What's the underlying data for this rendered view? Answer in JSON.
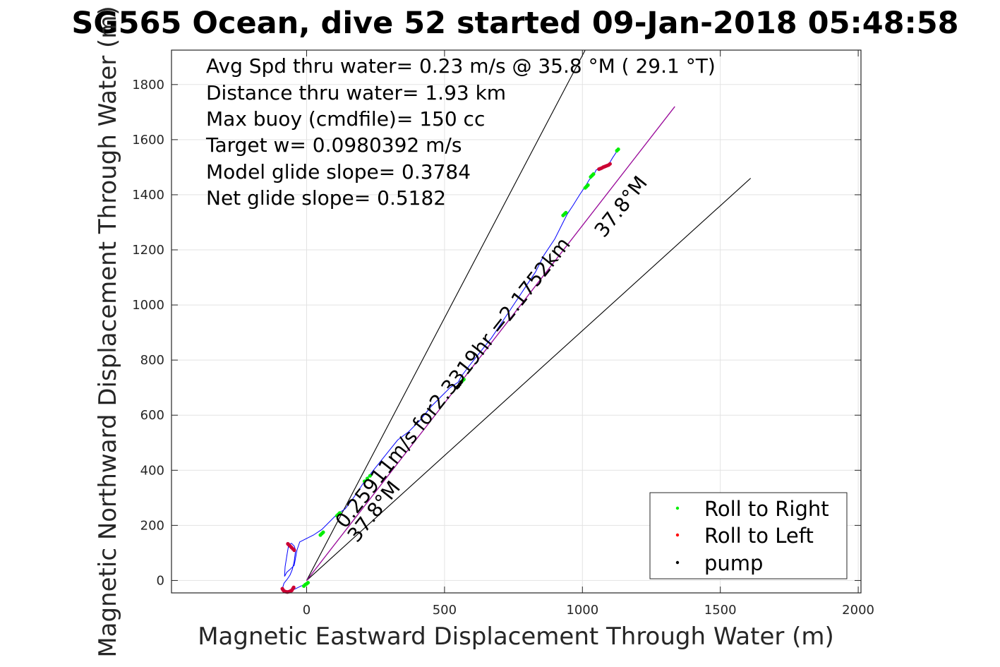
{
  "chart_data": {
    "type": "scatter",
    "title": "SG565 Ocean, dive 52 started 09-Jan-2018 05:48:58",
    "xlabel": "Magnetic Eastward Displacement Through Water (m)",
    "ylabel": "Magnetic Northward Displacement Through Water (m)",
    "xlim": [
      -490,
      2010
    ],
    "ylim": [
      -45,
      1925
    ],
    "xticks": [
      0,
      500,
      1000,
      1500,
      2000
    ],
    "yticks": [
      0,
      200,
      400,
      600,
      800,
      1000,
      1200,
      1400,
      1600,
      1800
    ],
    "grid": true,
    "legend_position": "bottom-right",
    "annotations": [
      "Avg Spd thru water=  0.23 m/s @  35.8 °M ( 29.1 °T)",
      "Distance thru water=  1.93 km",
      "Max buoy (cmdfile)= 150 cc",
      "Target w= 0.0980392 m/s",
      "Model glide slope= 0.3784",
      "Net glide slope= 0.5182"
    ],
    "line_labels": {
      "track": "0.25911m/s for2.3319hr =2.1752km",
      "heading_start": "37.8°M",
      "heading_end": "37.8°M"
    },
    "reference_lines": [
      {
        "name": "cone-left",
        "color": "#000000",
        "x": [
          0,
          1010
        ],
        "y": [
          0,
          1925
        ]
      },
      {
        "name": "cone-right",
        "color": "#000000",
        "x": [
          0,
          1610
        ],
        "y": [
          0,
          1460
        ]
      },
      {
        "name": "heading",
        "color": "#000000",
        "x": [
          0,
          1335
        ],
        "y": [
          0,
          1720
        ]
      },
      {
        "name": "heading-overlay",
        "color": "#aa00aa",
        "x": [
          0,
          1335
        ],
        "y": [
          0,
          1720
        ]
      }
    ],
    "track": {
      "color": "#0000ff",
      "x": [
        -5,
        -20,
        -40,
        -60,
        -75,
        -88,
        -82,
        -70,
        -60,
        -52,
        -45,
        -40,
        -45,
        -55,
        -65,
        -70,
        -78,
        -80,
        -72,
        -60,
        -45,
        -35,
        -25,
        5,
        25,
        55,
        85,
        110,
        140,
        170,
        210,
        250,
        290,
        330,
        370,
        410,
        450,
        490,
        520,
        550,
        560,
        590,
        630,
        670,
        710,
        750,
        790,
        830,
        860,
        900,
        930,
        945,
        965,
        990,
        1010,
        1025,
        1040,
        1050,
        1060,
        1075,
        1085,
        1095,
        1110,
        1130
      ],
      "y": [
        -15,
        -20,
        -30,
        -38,
        -40,
        -30,
        -10,
        5,
        20,
        40,
        70,
        110,
        125,
        135,
        130,
        100,
        50,
        15,
        30,
        40,
        55,
        110,
        140,
        155,
        165,
        185,
        215,
        240,
        260,
        300,
        360,
        410,
        460,
        510,
        540,
        580,
        630,
        670,
        700,
        720,
        740,
        780,
        830,
        880,
        940,
        1000,
        1060,
        1120,
        1180,
        1240,
        1300,
        1330,
        1360,
        1400,
        1430,
        1455,
        1470,
        1490,
        1495,
        1500,
        1505,
        1510,
        1535,
        1565
      ]
    },
    "series": [
      {
        "name": "Roll to Right",
        "color": "#00ee00",
        "x": [
          -10,
          -5,
          0,
          5,
          50,
          55,
          60,
          110,
          115,
          120,
          210,
          220,
          230,
          560,
          565,
          570,
          930,
          935,
          940,
          1010,
          1015,
          1020,
          1030,
          1035,
          1040,
          1125,
          1130
        ],
        "y": [
          -20,
          -15,
          -12,
          -8,
          165,
          170,
          175,
          235,
          240,
          245,
          360,
          370,
          380,
          720,
          725,
          730,
          1325,
          1330,
          1335,
          1425,
          1430,
          1435,
          1465,
          1470,
          1475,
          1560,
          1565
        ]
      },
      {
        "name": "Roll to Left",
        "color": "#cc0033",
        "x": [
          -88,
          -85,
          -82,
          -78,
          -74,
          -70,
          -66,
          -62,
          -58,
          -54,
          -50,
          -47,
          -45,
          -50,
          -55,
          -60,
          -65,
          -68,
          1060,
          1065,
          1070,
          1075,
          1080,
          1085,
          1090,
          1095,
          1100
        ],
        "y": [
          -30,
          -35,
          -38,
          -40,
          -41,
          -42,
          -41,
          -40,
          -38,
          -36,
          -30,
          -25,
          110,
          115,
          120,
          125,
          130,
          133,
          1493,
          1495,
          1497,
          1500,
          1502,
          1504,
          1506,
          1508,
          1512
        ]
      },
      {
        "name": "pump",
        "color": "#000000",
        "x": [
          545,
          550,
          555,
          560
        ],
        "y": [
          700,
          705,
          712,
          720
        ]
      }
    ]
  }
}
